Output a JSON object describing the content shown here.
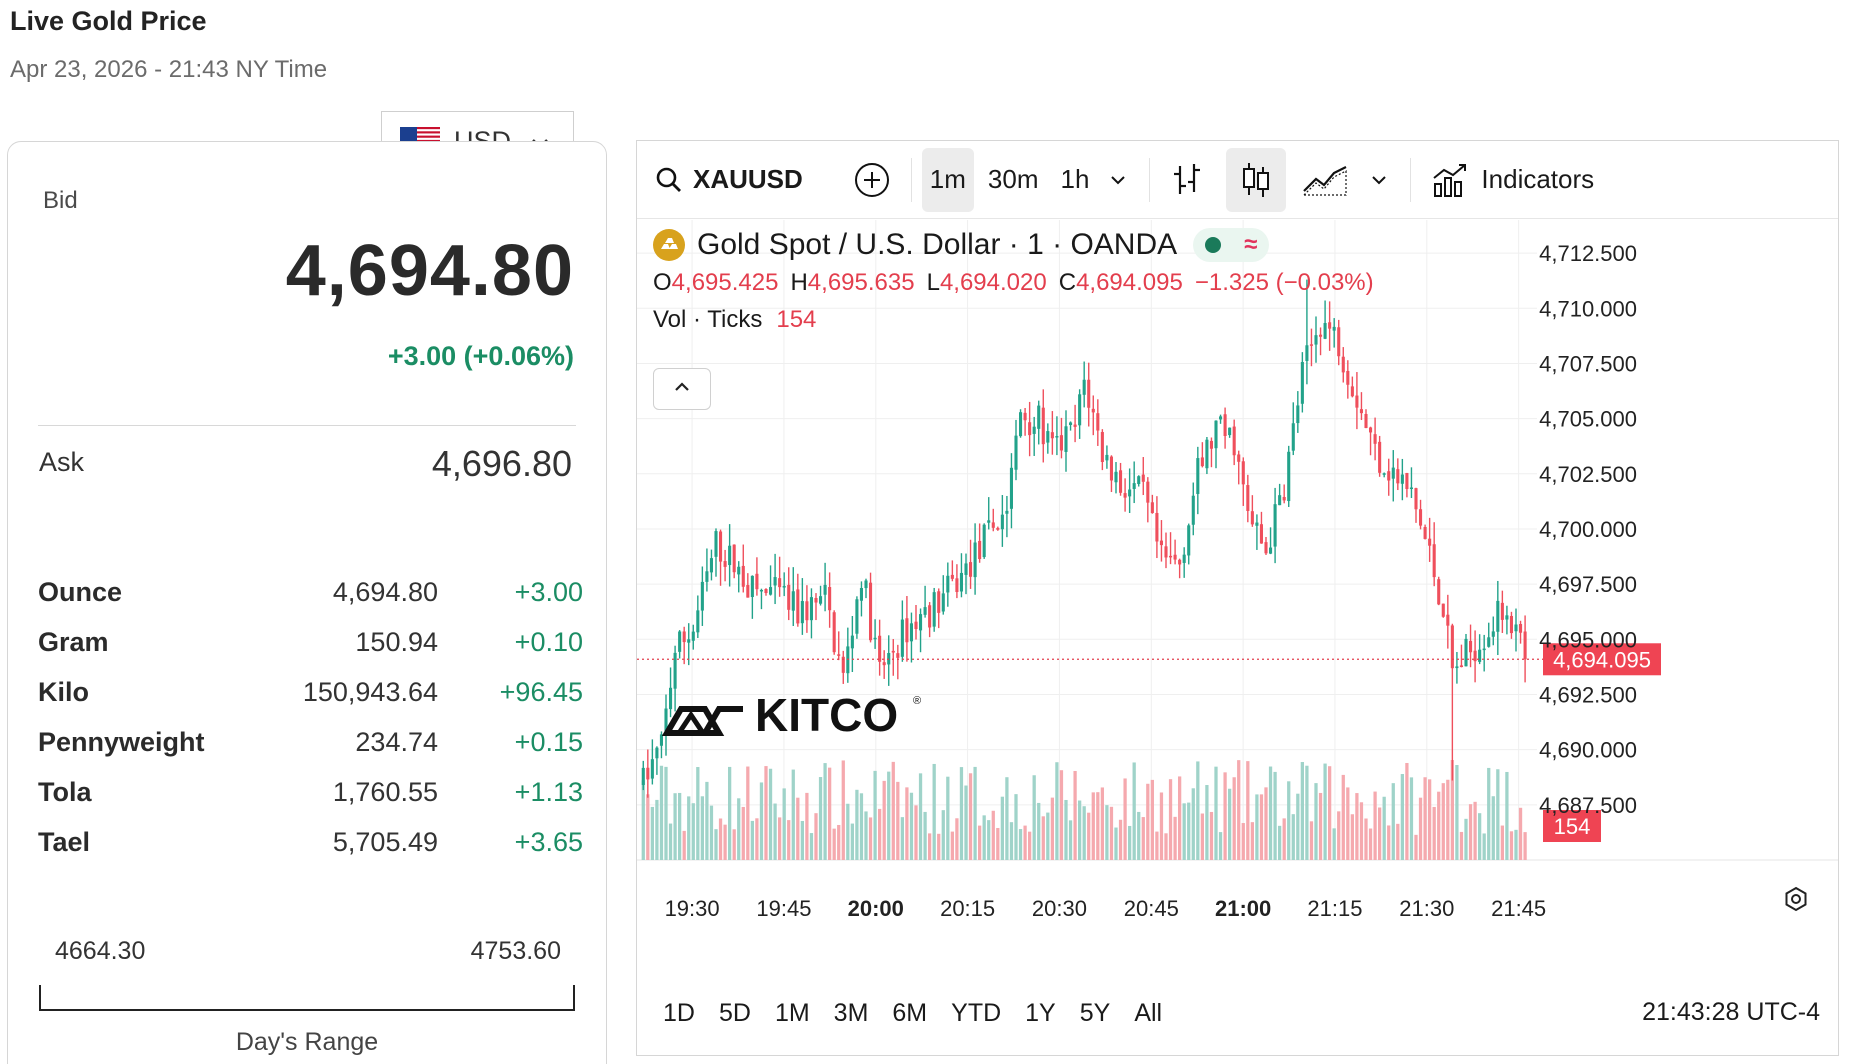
{
  "header": {
    "title": "Live Gold Price",
    "timestamp": "Apr 23, 2026 - 21:43 NY Time"
  },
  "currency": {
    "code": "USD",
    "flag_icon": "us-flag-icon"
  },
  "price": {
    "bid_label": "Bid",
    "bid": "4,694.80",
    "bid_change": "+3.00 (+0.06%)",
    "ask_label": "Ask",
    "ask": "4,696.80",
    "units": [
      {
        "name": "Ounce",
        "price": "4,694.80",
        "change": "+3.00"
      },
      {
        "name": "Gram",
        "price": "150.94",
        "change": "+0.10"
      },
      {
        "name": "Kilo",
        "price": "150,943.64",
        "change": "+96.45"
      },
      {
        "name": "Pennyweight",
        "price": "234.74",
        "change": "+0.15"
      },
      {
        "name": "Tola",
        "price": "1,760.55",
        "change": "+1.13"
      },
      {
        "name": "Tael",
        "price": "5,705.49",
        "change": "+3.65"
      }
    ],
    "range_low": "4664.30",
    "range_high": "4753.60",
    "range_label": "Day's Range"
  },
  "toolbar": {
    "symbol": "XAUUSD",
    "intervals": [
      "1m",
      "30m",
      "1h"
    ],
    "active_interval": "1m",
    "indicators_label": "Indicators"
  },
  "legend": {
    "title": "Gold Spot / U.S. Dollar · 1 · OANDA",
    "o_label": "O",
    "o": "4,695.425",
    "h_label": "H",
    "h": "4,695.635",
    "l_label": "L",
    "l": "4,694.020",
    "c_label": "C",
    "c": "4,694.095",
    "change": "−1.325 (−0.03%)",
    "vol_label": "Vol · Ticks",
    "vol": "154",
    "wave": "≈"
  },
  "bottom": {
    "ranges": [
      "1D",
      "5D",
      "1M",
      "3M",
      "6M",
      "YTD",
      "1Y",
      "5Y",
      "All"
    ],
    "clock": "21:43:28 UTC-4"
  },
  "watermark": "KITCO",
  "colors": {
    "up": "#22a28a",
    "down": "#ef4f5c",
    "up_vol": "#9fd3c9",
    "down_vol": "#f5a9ae",
    "accent_green": "#1b8d64"
  },
  "chart_data": {
    "type": "candlestick",
    "title": "Gold Spot / U.S. Dollar · 1 · OANDA",
    "ylim": [
      4685.0,
      4714.0
    ],
    "y_ticks": [
      4712.5,
      4710.0,
      4707.5,
      4705.0,
      4702.5,
      4700.0,
      4697.5,
      4695.0,
      4692.5,
      4690.0,
      4687.5
    ],
    "y_tick_labels": [
      "4,712.500",
      "4,710.000",
      "4,707.500",
      "4,705.000",
      "4,702.500",
      "4,700.000",
      "4,697.500",
      "4,695.000",
      "4,692.500",
      "4,690.000",
      "4,687.500"
    ],
    "x_labels": [
      "19:30",
      "19:45",
      "20:00",
      "20:15",
      "20:30",
      "20:45",
      "21:00",
      "21:15",
      "21:30",
      "21:45"
    ],
    "x_label_bold": [
      "20:00",
      "21:00"
    ],
    "x_range_minutes": [
      1161,
      1308
    ],
    "x_label_minutes": [
      1170,
      1185,
      1200,
      1215,
      1230,
      1245,
      1260,
      1275,
      1290,
      1305
    ],
    "last_price": 4694.095,
    "last_price_label": "4,694.095",
    "last_volume_label": "154",
    "keyframes": [
      {
        "t": 0,
        "p": 4688.5
      },
      {
        "t": 4,
        "p": 4690.2
      },
      {
        "t": 7,
        "p": 4694.5
      },
      {
        "t": 11,
        "p": 4695.5
      },
      {
        "t": 16,
        "p": 4699.3
      },
      {
        "t": 20,
        "p": 4698.4
      },
      {
        "t": 24,
        "p": 4697.2
      },
      {
        "t": 30,
        "p": 4697.0
      },
      {
        "t": 34,
        "p": 4696.2
      },
      {
        "t": 40,
        "p": 4696.8
      },
      {
        "t": 44,
        "p": 4693.2
      },
      {
        "t": 48,
        "p": 4698.0
      },
      {
        "t": 52,
        "p": 4693.5
      },
      {
        "t": 58,
        "p": 4695.5
      },
      {
        "t": 64,
        "p": 4696.5
      },
      {
        "t": 70,
        "p": 4697.8
      },
      {
        "t": 76,
        "p": 4699.8
      },
      {
        "t": 80,
        "p": 4701.0
      },
      {
        "t": 83,
        "p": 4705.3
      },
      {
        "t": 87,
        "p": 4704.8
      },
      {
        "t": 90,
        "p": 4703.5
      },
      {
        "t": 95,
        "p": 4704.5
      },
      {
        "t": 97,
        "p": 4706.7
      },
      {
        "t": 101,
        "p": 4703.5
      },
      {
        "t": 105,
        "p": 4702.0
      },
      {
        "t": 110,
        "p": 4701.5
      },
      {
        "t": 114,
        "p": 4698.5
      },
      {
        "t": 118,
        "p": 4698.5
      },
      {
        "t": 122,
        "p": 4702.5
      },
      {
        "t": 126,
        "p": 4704.5
      },
      {
        "t": 130,
        "p": 4704.0
      },
      {
        "t": 133,
        "p": 4700.5
      },
      {
        "t": 137,
        "p": 4699.0
      },
      {
        "t": 141,
        "p": 4702.0
      },
      {
        "t": 145,
        "p": 4707.0
      },
      {
        "t": 149,
        "p": 4709.5
      },
      {
        "t": 153,
        "p": 4708.5
      },
      {
        "t": 157,
        "p": 4706.0
      },
      {
        "t": 161,
        "p": 4703.5
      },
      {
        "t": 165,
        "p": 4702.5
      },
      {
        "t": 169,
        "p": 4701.5
      },
      {
        "t": 172,
        "p": 4699.5
      },
      {
        "t": 176,
        "p": 4696.5
      },
      {
        "t": 178,
        "p": 4693.5
      },
      {
        "t": 182,
        "p": 4694.5
      },
      {
        "t": 186,
        "p": 4695.5
      },
      {
        "t": 190,
        "p": 4696.5
      },
      {
        "t": 194,
        "p": 4694.1
      }
    ]
  }
}
